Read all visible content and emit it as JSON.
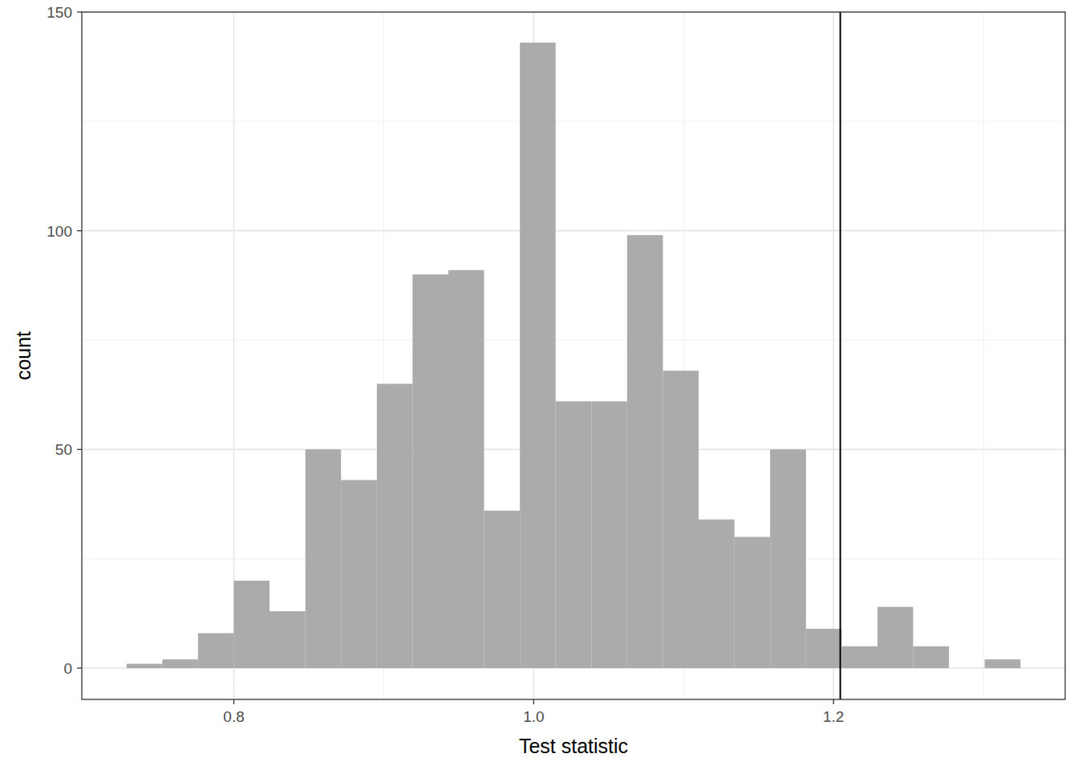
{
  "chart_data": {
    "type": "histogram",
    "x_label": "Test statistic",
    "y_label": "count",
    "bins": [
      0.7284,
      0.7523,
      0.7761,
      0.8,
      0.8238,
      0.8477,
      0.8715,
      0.8954,
      0.9192,
      0.9431,
      0.9669,
      0.9908,
      1.0146,
      1.0385,
      1.0623,
      1.0862,
      1.11,
      1.1339,
      1.1577,
      1.1816,
      1.2054,
      1.2293,
      1.2531,
      1.277,
      1.3008,
      1.3247
    ],
    "counts": [
      1,
      2,
      8,
      20,
      13,
      50,
      43,
      65,
      90,
      91,
      36,
      143,
      61,
      61,
      99,
      68,
      34,
      30,
      50,
      9,
      5,
      14,
      5,
      0,
      2
    ],
    "color": "#ababab",
    "vline": 1.2045,
    "xlim": [
      0.6986,
      1.3545
    ],
    "ylim": [
      -7.15,
      150
    ],
    "xticks": [
      0.8,
      {
        "value": 1,
        "label": "1.0"
      },
      1.2
    ],
    "yticks": [
      0,
      50,
      100,
      150
    ],
    "grid": true
  }
}
